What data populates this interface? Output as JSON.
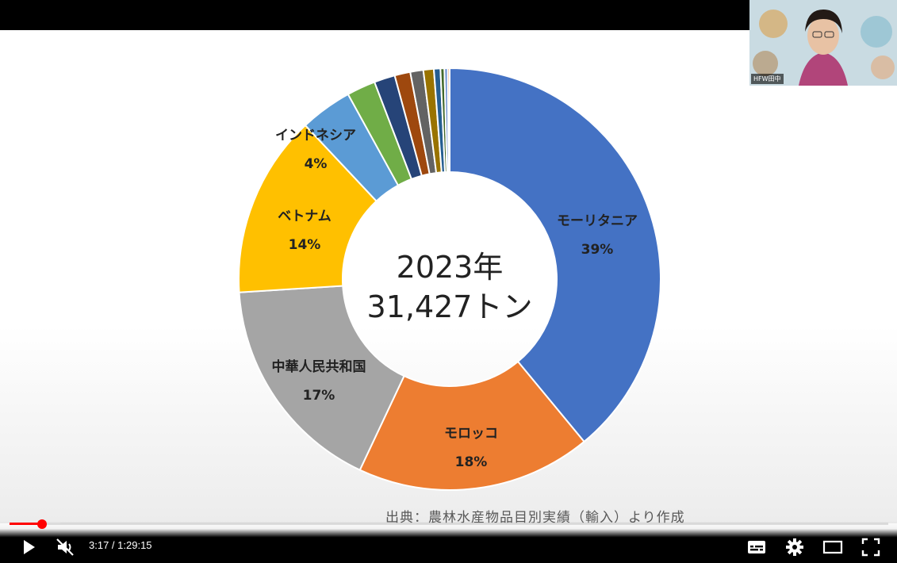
{
  "player": {
    "current_time": "3:17",
    "separator": " / ",
    "duration": "1:29:15",
    "progress_fraction": 0.0368,
    "buffered_fraction": 0.058,
    "icons": [
      "play-icon",
      "mute-icon",
      "captions-icon",
      "settings-icon",
      "theater-icon",
      "fullscreen-icon"
    ]
  },
  "pip": {
    "label": "HFW田中"
  },
  "slide": {
    "source_note": "出典：農林水産物品目別実績（輸入）より作成"
  },
  "colors": {
    "progress": "#ff0000"
  },
  "chart_data": {
    "type": "pie",
    "variant": "donut",
    "center_text": [
      "2023年",
      "31,427トン"
    ],
    "slices": [
      {
        "label": "モーリタニア",
        "display": "39%",
        "value": 39,
        "color": "#4472C4"
      },
      {
        "label": "モロッコ",
        "display": "18%",
        "value": 18,
        "color": "#ED7D31"
      },
      {
        "label": "中華人民共和国",
        "display": "17%",
        "value": 17,
        "color": "#A5A5A5"
      },
      {
        "label": "ベトナム",
        "display": "14%",
        "value": 14,
        "color": "#FFC000"
      },
      {
        "label": "インドネシア",
        "display": "4%",
        "value": 4,
        "color": "#5B9BD5"
      },
      {
        "label": "",
        "display": "",
        "value": 2.2,
        "color": "#70AD47"
      },
      {
        "label": "",
        "display": "",
        "value": 1.6,
        "color": "#264478"
      },
      {
        "label": "",
        "display": "",
        "value": 1.2,
        "color": "#9E480E"
      },
      {
        "label": "",
        "display": "",
        "value": 1.0,
        "color": "#636363"
      },
      {
        "label": "",
        "display": "",
        "value": 0.8,
        "color": "#997300"
      },
      {
        "label": "",
        "display": "",
        "value": 0.5,
        "color": "#255E91"
      },
      {
        "label": "",
        "display": "",
        "value": 0.3,
        "color": "#43682B"
      },
      {
        "label": "",
        "display": "",
        "value": 0.25,
        "color": "#698ED0"
      },
      {
        "label": "",
        "display": "",
        "value": 0.15,
        "color": "#F1975A"
      }
    ]
  }
}
